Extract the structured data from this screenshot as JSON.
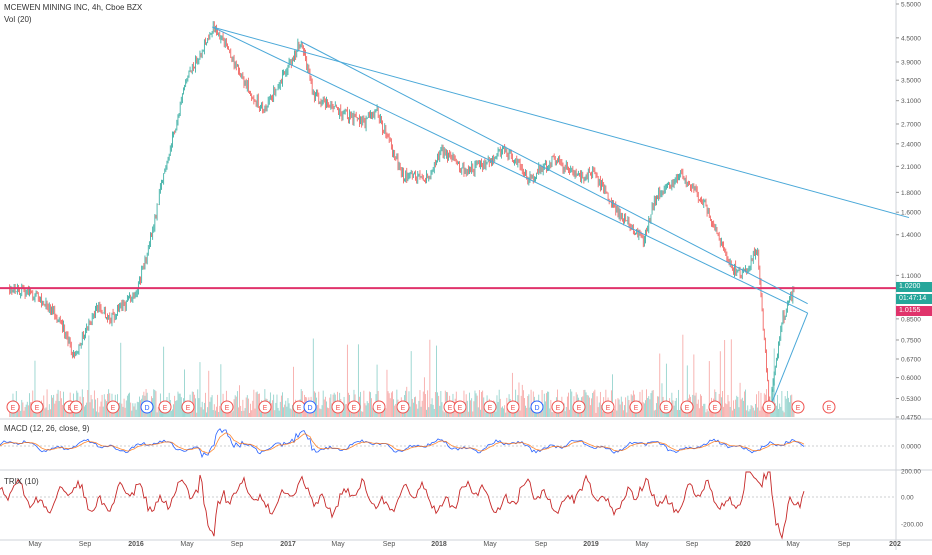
{
  "header": {
    "title": "MCEWEN MINING INC, 4h, Cboe BZX",
    "volume_label": "Vol (20)",
    "macd_label": "MACD (12, 26, close, 9)",
    "trix_label": "TRIX (10)"
  },
  "price_labels": {
    "last": "1.0200",
    "countdown": "01:47:14",
    "marker": "1.0155"
  },
  "colors": {
    "up": "#26a69a",
    "down": "#ef5350",
    "trendline": "#4aa8d8",
    "horizontal": "#e0336b",
    "trix": "#c62828",
    "macd": "#2962ff",
    "signal": "#ff6d00"
  },
  "chart_data": [
    {
      "type": "candlestick",
      "title": "MCEWEN MINING INC, 4h, Cboe BZX",
      "y_scale": "log",
      "y_ticks": [
        "5.5000",
        "4.5000",
        "3.9000",
        "3.5000",
        "3.1000",
        "2.7000",
        "2.4000",
        "2.1000",
        "1.8000",
        "1.6000",
        "1.4000",
        "1.1000",
        "0.9500",
        "0.8500",
        "0.7500",
        "0.6700",
        "0.6000",
        "0.5300",
        "0.4750"
      ],
      "x_ticks": [
        "May",
        "Sep",
        "2016",
        "May",
        "Sep",
        "2017",
        "May",
        "Sep",
        "2018",
        "May",
        "Sep",
        "2019",
        "May",
        "Sep",
        "2020",
        "May",
        "Sep",
        "202"
      ],
      "approx_close_path": [
        {
          "t": "2015-03",
          "v": 1.03
        },
        {
          "t": "2015-05",
          "v": 0.98
        },
        {
          "t": "2015-07",
          "v": 0.85
        },
        {
          "t": "2015-08",
          "v": 0.68
        },
        {
          "t": "2015-10",
          "v": 0.92
        },
        {
          "t": "2015-11",
          "v": 0.85
        },
        {
          "t": "2016-01",
          "v": 1.0
        },
        {
          "t": "2016-02",
          "v": 1.3
        },
        {
          "t": "2016-03",
          "v": 1.9
        },
        {
          "t": "2016-04",
          "v": 2.6
        },
        {
          "t": "2016-05",
          "v": 3.5
        },
        {
          "t": "2016-07",
          "v": 4.8
        },
        {
          "t": "2016-08",
          "v": 4.4
        },
        {
          "t": "2016-09",
          "v": 3.7
        },
        {
          "t": "2016-11",
          "v": 2.9
        },
        {
          "t": "2017-01",
          "v": 3.8
        },
        {
          "t": "2017-02",
          "v": 4.4
        },
        {
          "t": "2017-03",
          "v": 3.2
        },
        {
          "t": "2017-05",
          "v": 2.9
        },
        {
          "t": "2017-07",
          "v": 2.7
        },
        {
          "t": "2017-08",
          "v": 2.9
        },
        {
          "t": "2017-09",
          "v": 2.4
        },
        {
          "t": "2017-10",
          "v": 2.0
        },
        {
          "t": "2017-12",
          "v": 1.95
        },
        {
          "t": "2018-01",
          "v": 2.3
        },
        {
          "t": "2018-03",
          "v": 2.05
        },
        {
          "t": "2018-05",
          "v": 2.15
        },
        {
          "t": "2018-06",
          "v": 2.35
        },
        {
          "t": "2018-08",
          "v": 1.95
        },
        {
          "t": "2018-10",
          "v": 2.2
        },
        {
          "t": "2018-12",
          "v": 1.95
        },
        {
          "t": "2019-01",
          "v": 2.05
        },
        {
          "t": "2019-03",
          "v": 1.6
        },
        {
          "t": "2019-05",
          "v": 1.35
        },
        {
          "t": "2019-06",
          "v": 1.75
        },
        {
          "t": "2019-08",
          "v": 2.0
        },
        {
          "t": "2019-09",
          "v": 1.85
        },
        {
          "t": "2019-10",
          "v": 1.65
        },
        {
          "t": "2019-12",
          "v": 1.15
        },
        {
          "t": "2020-01",
          "v": 1.1
        },
        {
          "t": "2020-02",
          "v": 1.3
        },
        {
          "t": "2020-03",
          "v": 0.5
        },
        {
          "t": "2020-04",
          "v": 0.85
        },
        {
          "t": "2020-05",
          "v": 1.02
        }
      ],
      "horizontal_level": 1.02,
      "trendlines": [
        {
          "from": {
            "t": "2016-07",
            "v": 4.8
          },
          "to": {
            "t": "2021-02",
            "v": 1.55
          }
        },
        {
          "from": {
            "t": "2016-07",
            "v": 4.8
          },
          "to": {
            "t": "2020-06",
            "v": 0.88
          }
        },
        {
          "from": {
            "t": "2017-02",
            "v": 4.4
          },
          "to": {
            "t": "2020-06",
            "v": 0.93
          }
        },
        {
          "from": {
            "t": "2020-03",
            "v": 0.5
          },
          "to": {
            "t": "2020-06",
            "v": 0.88
          }
        }
      ]
    },
    {
      "type": "bar",
      "title": "Vol (20)"
    },
    {
      "type": "line",
      "title": "MACD (12, 26, close, 9)",
      "y_ticks": [
        "0.0000"
      ]
    },
    {
      "type": "line",
      "title": "TRIX (10)",
      "y_ticks": [
        "200.00",
        "0.00",
        "-200.00"
      ]
    }
  ],
  "event_markers": [
    {
      "label": "E"
    },
    {
      "label": "E"
    },
    {
      "label": "E"
    },
    {
      "label": "E"
    },
    {
      "label": "E"
    },
    {
      "label": "D"
    },
    {
      "label": "E"
    },
    {
      "label": "E"
    },
    {
      "label": "E"
    },
    {
      "label": "E"
    },
    {
      "label": "E"
    },
    {
      "label": "D"
    },
    {
      "label": "E"
    },
    {
      "label": "E"
    },
    {
      "label": "E"
    },
    {
      "label": "E"
    },
    {
      "label": "E"
    },
    {
      "label": "E"
    },
    {
      "label": "E"
    },
    {
      "label": "E"
    },
    {
      "label": "D"
    },
    {
      "label": "E"
    },
    {
      "label": "E"
    },
    {
      "label": "E"
    },
    {
      "label": "E"
    },
    {
      "label": "E"
    },
    {
      "label": "E"
    },
    {
      "label": "E"
    },
    {
      "label": "E"
    },
    {
      "label": "E"
    },
    {
      "label": "E"
    },
    {
      "label": "E"
    }
  ]
}
